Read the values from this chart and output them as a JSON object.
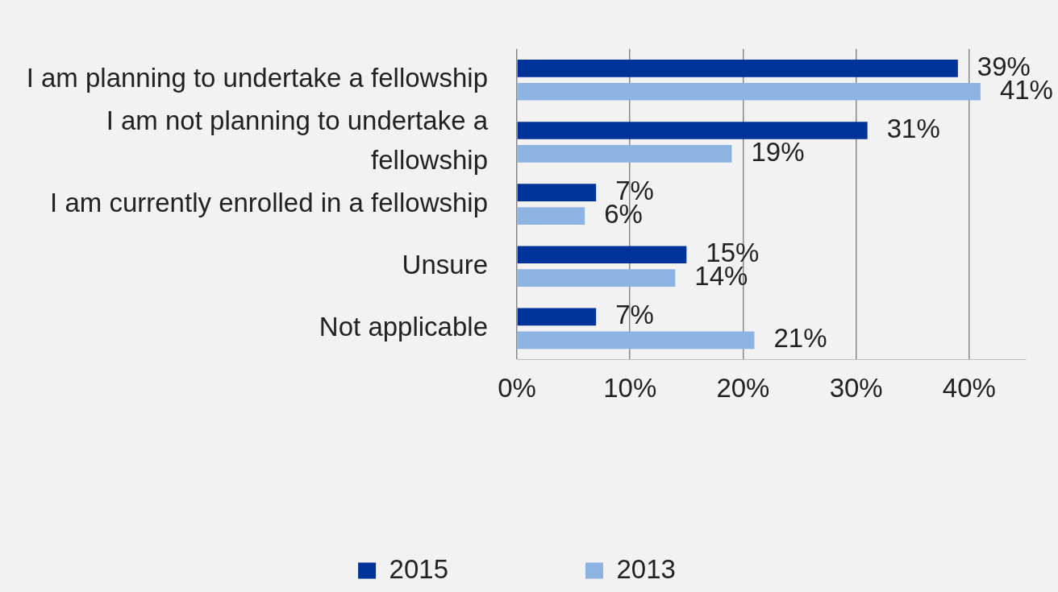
{
  "chart_data": {
    "type": "bar",
    "orientation": "horizontal",
    "categories": [
      "I am planning to undertake a fellowship",
      "I am not planning to undertake a fellowship",
      "I am currently enrolled in a fellowship",
      "Unsure",
      "Not applicable"
    ],
    "series": [
      {
        "name": "2015",
        "color": "#003399",
        "values": [
          39,
          31,
          7,
          15,
          7
        ],
        "value_labels": [
          "39%",
          "31%",
          "7%",
          "15%",
          "7%"
        ]
      },
      {
        "name": "2013",
        "color": "#8db3e2",
        "values": [
          41,
          19,
          6,
          14,
          21
        ],
        "value_labels": [
          "41%",
          "19%",
          "6%",
          "14%",
          "21%"
        ]
      }
    ],
    "xlim": [
      0,
      45
    ],
    "xticks": [
      {
        "value": 0,
        "label": "0%"
      },
      {
        "value": 10,
        "label": "10%"
      },
      {
        "value": 20,
        "label": "20%"
      },
      {
        "value": 30,
        "label": "30%"
      },
      {
        "value": 40,
        "label": "40%"
      }
    ],
    "grid": "x",
    "legend": "bottom",
    "marker": "square"
  }
}
